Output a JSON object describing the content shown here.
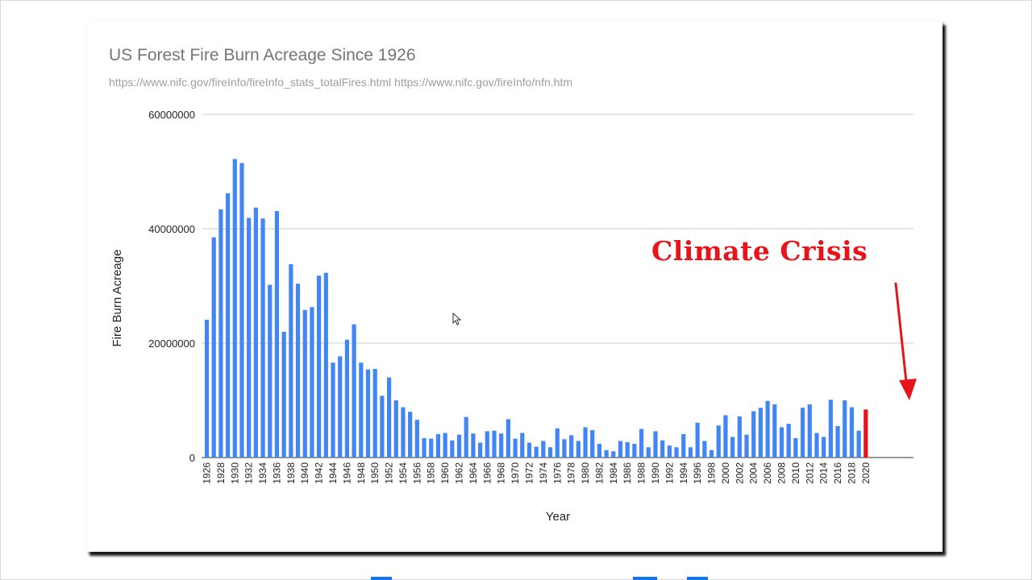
{
  "chart_data": {
    "type": "bar",
    "title": "US Forest Fire Burn Acreage Since 1926",
    "subtitle": "https://www.nifc.gov/fireInfo/fireInfo_stats_totalFires.html  https://www.nifc.gov/fireInfo/nfn.htm",
    "xlabel": "Year",
    "ylabel": "Fire Burn Acreage",
    "ylim": [
      0,
      60000000
    ],
    "yticks": [
      "0",
      "20000000",
      "40000000",
      "60000000"
    ],
    "ytick_values": [
      0,
      20000000,
      40000000,
      60000000
    ],
    "grid": true,
    "legend": "none",
    "bar_color": "#4285f4",
    "highlight_color": "#e8141b",
    "highlight_category": "2020",
    "categories": [
      "1926",
      "1927",
      "1928",
      "1929",
      "1930",
      "1931",
      "1932",
      "1933",
      "1934",
      "1935",
      "1936",
      "1937",
      "1938",
      "1939",
      "1940",
      "1941",
      "1942",
      "1943",
      "1944",
      "1945",
      "1946",
      "1947",
      "1948",
      "1949",
      "1950",
      "1951",
      "1952",
      "1953",
      "1954",
      "1955",
      "1956",
      "1957",
      "1958",
      "1959",
      "1960",
      "1961",
      "1962",
      "1963",
      "1964",
      "1965",
      "1966",
      "1967",
      "1968",
      "1969",
      "1970",
      "1971",
      "1972",
      "1973",
      "1974",
      "1975",
      "1976",
      "1977",
      "1978",
      "1979",
      "1980",
      "1981",
      "1982",
      "1983",
      "1984",
      "1985",
      "1986",
      "1987",
      "1988",
      "1989",
      "1990",
      "1991",
      "1992",
      "1993",
      "1994",
      "1995",
      "1996",
      "1997",
      "1998",
      "1999",
      "2000",
      "2001",
      "2002",
      "2003",
      "2004",
      "2005",
      "2006",
      "2007",
      "2008",
      "2009",
      "2010",
      "2011",
      "2012",
      "2013",
      "2014",
      "2015",
      "2016",
      "2017",
      "2018",
      "2019",
      "2020"
    ],
    "tick_labels": [
      "1926",
      "1928",
      "1930",
      "1932",
      "1934",
      "1936",
      "1938",
      "1940",
      "1942",
      "1944",
      "1946",
      "1948",
      "1950",
      "1952",
      "1954",
      "1956",
      "1958",
      "1960",
      "1962",
      "1964",
      "1966",
      "1968",
      "1970",
      "1972",
      "1974",
      "1976",
      "1978",
      "1980",
      "1982",
      "1984",
      "1986",
      "1988",
      "1990",
      "1992",
      "1994",
      "1996",
      "1998",
      "2000",
      "2002",
      "2004",
      "2006",
      "2008",
      "2010",
      "2012",
      "2014",
      "2016",
      "2018",
      "2020"
    ],
    "values": [
      24100000,
      38500000,
      43400000,
      46200000,
      52200000,
      51500000,
      41900000,
      43700000,
      41800000,
      30200000,
      43100000,
      22000000,
      33800000,
      30400000,
      25800000,
      26300000,
      31800000,
      32300000,
      16600000,
      17700000,
      20600000,
      23300000,
      16600000,
      15400000,
      15500000,
      10800000,
      14000000,
      10000000,
      8800000,
      8000000,
      6600000,
      3400000,
      3300000,
      4100000,
      4300000,
      3000000,
      4000000,
      7100000,
      4200000,
      2600000,
      4600000,
      4700000,
      4200000,
      6700000,
      3300000,
      4300000,
      2600000,
      1900000,
      2900000,
      1800000,
      5100000,
      3200000,
      3900000,
      2900000,
      5300000,
      4800000,
      2400000,
      1300000,
      1100000,
      2900000,
      2700000,
      2400000,
      5000000,
      1800000,
      4600000,
      3000000,
      2100000,
      1800000,
      4100000,
      1800000,
      6100000,
      2900000,
      1300000,
      5600000,
      7400000,
      3600000,
      7200000,
      4000000,
      8100000,
      8700000,
      9900000,
      9300000,
      5300000,
      5900000,
      3400000,
      8700000,
      9300000,
      4300000,
      3600000,
      10100000,
      5500000,
      10000000,
      8800000,
      4700000,
      8400000
    ]
  },
  "annotation": {
    "text": "Climate Crisis",
    "color": "#e8141b"
  }
}
